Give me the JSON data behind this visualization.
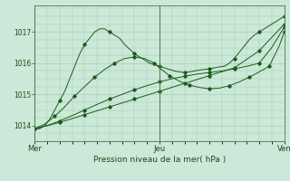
{
  "xlabel": "Pression niveau de la mer( hPa )",
  "bg_color": "#cce8d8",
  "grid_color": "#99ccaa",
  "line_color": "#1a5c1a",
  "ylim": [
    1013.5,
    1017.85
  ],
  "yticks": [
    1014,
    1015,
    1016,
    1017
  ],
  "xtick_labels": [
    "Mer",
    "Jeu",
    "Ven"
  ],
  "xtick_positions": [
    0,
    0.5,
    1.0
  ],
  "series": [
    {
      "x": [
        0.0,
        0.02,
        0.04,
        0.06,
        0.08,
        0.1,
        0.12,
        0.14,
        0.16,
        0.18,
        0.2,
        0.22,
        0.24,
        0.26,
        0.28,
        0.3,
        0.32,
        0.34,
        0.36,
        0.38,
        0.4,
        0.42,
        0.44,
        0.46,
        0.48,
        0.5,
        0.52,
        0.54,
        0.56,
        0.58,
        0.6,
        0.62,
        0.64,
        0.66,
        0.68,
        0.7,
        0.72,
        0.74,
        0.76,
        0.78,
        0.8,
        0.82,
        0.84,
        0.86,
        0.88,
        0.9,
        0.92,
        0.94,
        0.96,
        0.98,
        1.0
      ],
      "y": [
        1013.9,
        1013.9,
        1014.0,
        1014.2,
        1014.5,
        1014.8,
        1015.1,
        1015.5,
        1015.9,
        1016.3,
        1016.6,
        1016.8,
        1017.0,
        1017.1,
        1017.1,
        1017.0,
        1016.9,
        1016.8,
        1016.6,
        1016.45,
        1016.3,
        1016.2,
        1016.1,
        1016.0,
        1015.95,
        1015.9,
        1015.85,
        1015.8,
        1015.75,
        1015.72,
        1015.7,
        1015.72,
        1015.75,
        1015.78,
        1015.8,
        1015.82,
        1015.85,
        1015.88,
        1015.9,
        1016.0,
        1016.15,
        1016.35,
        1016.55,
        1016.75,
        1016.9,
        1017.0,
        1017.1,
        1017.2,
        1017.3,
        1017.4,
        1017.5
      ]
    },
    {
      "x": [
        0.0,
        0.04,
        0.08,
        0.12,
        0.16,
        0.2,
        0.24,
        0.28,
        0.32,
        0.36,
        0.4,
        0.44,
        0.48,
        0.5,
        0.54,
        0.58,
        0.62,
        0.66,
        0.7,
        0.74,
        0.78,
        0.82,
        0.86,
        0.9,
        0.94,
        0.98,
        1.0
      ],
      "y": [
        1013.9,
        1014.05,
        1014.3,
        1014.6,
        1014.95,
        1015.25,
        1015.55,
        1015.8,
        1016.0,
        1016.15,
        1016.2,
        1016.15,
        1016.0,
        1015.85,
        1015.6,
        1015.42,
        1015.3,
        1015.22,
        1015.18,
        1015.2,
        1015.28,
        1015.4,
        1015.55,
        1015.72,
        1015.9,
        1016.55,
        1017.0
      ]
    },
    {
      "x": [
        0.0,
        0.05,
        0.1,
        0.15,
        0.2,
        0.25,
        0.3,
        0.35,
        0.4,
        0.45,
        0.5,
        0.55,
        0.6,
        0.65,
        0.7,
        0.75,
        0.8,
        0.85,
        0.9,
        0.95,
        1.0
      ],
      "y": [
        1013.9,
        1014.0,
        1014.15,
        1014.32,
        1014.5,
        1014.68,
        1014.85,
        1015.0,
        1015.15,
        1015.28,
        1015.4,
        1015.5,
        1015.58,
        1015.65,
        1015.7,
        1015.75,
        1015.82,
        1015.9,
        1016.0,
        1016.5,
        1017.15
      ]
    },
    {
      "x": [
        0.0,
        0.1,
        0.2,
        0.3,
        0.4,
        0.5,
        0.6,
        0.7,
        0.8,
        0.9,
        1.0
      ],
      "y": [
        1013.9,
        1014.1,
        1014.35,
        1014.6,
        1014.85,
        1015.1,
        1015.35,
        1015.6,
        1015.85,
        1016.4,
        1017.25
      ]
    }
  ]
}
